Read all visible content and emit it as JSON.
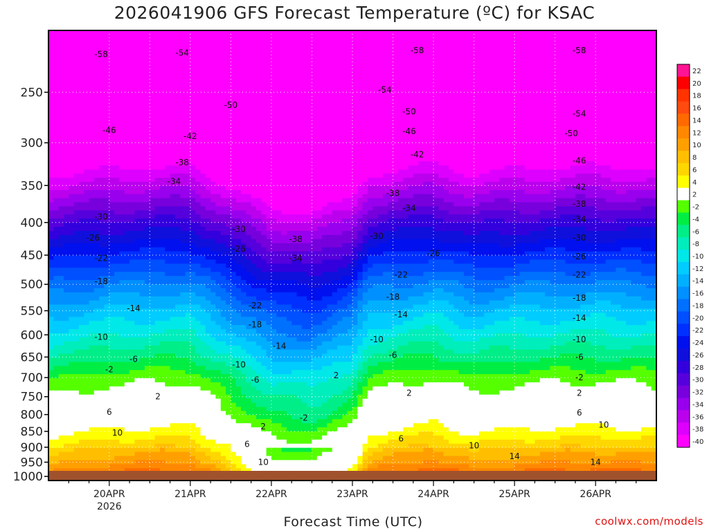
{
  "chart_data": {
    "type": "contour",
    "title": "2026041906 GFS Forecast Temperature (ºC) for KSAC",
    "xlabel": "Forecast Time (UTC)",
    "ylabel": "",
    "credit": "coolwx.com/models",
    "x_ticks": [
      {
        "label": "20APR",
        "sub": "2026",
        "day": 1
      },
      {
        "label": "21APR",
        "sub": "",
        "day": 2
      },
      {
        "label": "22APR",
        "sub": "",
        "day": 3
      },
      {
        "label": "23APR",
        "sub": "",
        "day": 4
      },
      {
        "label": "24APR",
        "sub": "",
        "day": 5
      },
      {
        "label": "25APR",
        "sub": "",
        "day": 6
      },
      {
        "label": "26APR",
        "sub": "",
        "day": 7
      }
    ],
    "xlim_days": [
      0.25,
      7.75
    ],
    "y_ticks": [
      250,
      300,
      350,
      400,
      450,
      500,
      550,
      600,
      650,
      700,
      750,
      800,
      850,
      900,
      950,
      1000
    ],
    "ylim_hpa": [
      1015,
      200
    ],
    "yscale": "log",
    "grid": true,
    "colorbar": {
      "labels": [
        "22",
        "20",
        "18",
        "16",
        "14",
        "12",
        "10",
        "8",
        "6",
        "4",
        "2",
        "-2",
        "-4",
        "-6",
        "-8",
        "-10",
        "-12",
        "-14",
        "-16",
        "-18",
        "-20",
        "-22",
        "-24",
        "-26",
        "-28",
        "-30",
        "-32",
        "-34",
        "-36",
        "-38",
        "-40"
      ],
      "colors": [
        "#ff1493",
        "#ff0000",
        "#ff3300",
        "#ff4a10",
        "#ff6a00",
        "#ff8800",
        "#ffa000",
        "#ffbf00",
        "#ffd700",
        "#ffff00",
        "#ffffff",
        "#55ff00",
        "#00ee44",
        "#00ee88",
        "#00eebb",
        "#00e8e8",
        "#00ccff",
        "#00b0ff",
        "#0090ff",
        "#0070ff",
        "#0050ff",
        "#0030ff",
        "#0010ee",
        "#1010dd",
        "#3300dd",
        "#5500dd",
        "#7700dd",
        "#9900ee",
        "#bb00ee",
        "#dd00ff",
        "#ff00ff"
      ]
    },
    "levels_profile": [
      {
        "p": 1000,
        "t": 13.0
      },
      {
        "p": 950,
        "t": 9.0
      },
      {
        "p": 900,
        "t": 6.0
      },
      {
        "p": 850,
        "t": 3.0
      },
      {
        "p": 800,
        "t": 0.0
      },
      {
        "p": 750,
        "t": -2.0
      },
      {
        "p": 700,
        "t": -4.5
      },
      {
        "p": 650,
        "t": -8.0
      },
      {
        "p": 600,
        "t": -11.5
      },
      {
        "p": 550,
        "t": -15.0
      },
      {
        "p": 500,
        "t": -19.5
      },
      {
        "p": 450,
        "t": -25.0
      },
      {
        "p": 400,
        "t": -31.0
      },
      {
        "p": 350,
        "t": -38.5
      },
      {
        "p": 300,
        "t": -46.0
      },
      {
        "p": 250,
        "t": -53.0
      },
      {
        "p": 200,
        "t": -58.0
      }
    ],
    "time_anomaly": [
      {
        "day": 0.25,
        "dt": 0.0
      },
      {
        "day": 1.0,
        "dt": 1.5
      },
      {
        "day": 2.0,
        "dt": 2.0
      },
      {
        "day": 2.5,
        "dt": -2.0
      },
      {
        "day": 3.0,
        "dt": -6.0
      },
      {
        "day": 3.5,
        "dt": -7.0
      },
      {
        "day": 4.0,
        "dt": -4.0
      },
      {
        "day": 4.2,
        "dt": 0.5
      },
      {
        "day": 5.0,
        "dt": 2.5
      },
      {
        "day": 5.5,
        "dt": 0.5
      },
      {
        "day": 6.0,
        "dt": 1.5
      },
      {
        "day": 7.0,
        "dt": 2.0
      },
      {
        "day": 7.75,
        "dt": 1.5
      }
    ],
    "contour_labels": [
      {
        "text": "-58",
        "day": 0.9,
        "p": 218
      },
      {
        "text": "-54",
        "day": 1.9,
        "p": 217
      },
      {
        "text": "-58",
        "day": 4.8,
        "p": 215
      },
      {
        "text": "-58",
        "day": 6.8,
        "p": 215
      },
      {
        "text": "-54",
        "day": 4.4,
        "p": 248
      },
      {
        "text": "-50",
        "day": 2.5,
        "p": 262
      },
      {
        "text": "-50",
        "day": 4.7,
        "p": 268
      },
      {
        "text": "-54",
        "day": 6.8,
        "p": 270
      },
      {
        "text": "-46",
        "day": 1.0,
        "p": 287
      },
      {
        "text": "-42",
        "day": 2.0,
        "p": 293
      },
      {
        "text": "-46",
        "day": 4.7,
        "p": 288
      },
      {
        "text": "-50",
        "day": 6.7,
        "p": 290
      },
      {
        "text": "-38",
        "day": 1.9,
        "p": 322
      },
      {
        "text": "-42",
        "day": 4.8,
        "p": 313
      },
      {
        "text": "-46",
        "day": 6.8,
        "p": 320
      },
      {
        "text": "-34",
        "day": 1.8,
        "p": 345
      },
      {
        "text": "-42",
        "day": 6.8,
        "p": 352
      },
      {
        "text": "-38",
        "day": 4.5,
        "p": 360
      },
      {
        "text": "-38",
        "day": 6.8,
        "p": 374
      },
      {
        "text": "-34",
        "day": 4.7,
        "p": 380
      },
      {
        "text": "-30",
        "day": 0.9,
        "p": 392
      },
      {
        "text": "-34",
        "day": 6.8,
        "p": 395
      },
      {
        "text": "-30",
        "day": 2.6,
        "p": 410
      },
      {
        "text": "-38",
        "day": 3.3,
        "p": 425
      },
      {
        "text": "-30",
        "day": 4.3,
        "p": 420
      },
      {
        "text": "-30",
        "day": 6.8,
        "p": 423
      },
      {
        "text": "-26",
        "day": 0.8,
        "p": 423
      },
      {
        "text": "-26",
        "day": 2.6,
        "p": 440
      },
      {
        "text": "-34",
        "day": 3.3,
        "p": 455
      },
      {
        "text": "-26",
        "day": 5.0,
        "p": 447
      },
      {
        "text": "-26",
        "day": 6.8,
        "p": 452
      },
      {
        "text": "-22",
        "day": 0.9,
        "p": 455
      },
      {
        "text": "-22",
        "day": 4.6,
        "p": 483
      },
      {
        "text": "-22",
        "day": 6.8,
        "p": 483
      },
      {
        "text": "-18",
        "day": 0.9,
        "p": 495
      },
      {
        "text": "-18",
        "day": 4.5,
        "p": 523
      },
      {
        "text": "-18",
        "day": 6.8,
        "p": 525
      },
      {
        "text": "-22",
        "day": 2.8,
        "p": 540
      },
      {
        "text": "-14",
        "day": 1.3,
        "p": 545
      },
      {
        "text": "-14",
        "day": 4.6,
        "p": 558
      },
      {
        "text": "-14",
        "day": 6.8,
        "p": 565
      },
      {
        "text": "-18",
        "day": 2.8,
        "p": 578
      },
      {
        "text": "-10",
        "day": 0.9,
        "p": 605
      },
      {
        "text": "-14",
        "day": 3.1,
        "p": 625
      },
      {
        "text": "-10",
        "day": 4.3,
        "p": 610
      },
      {
        "text": "-10",
        "day": 6.8,
        "p": 610
      },
      {
        "text": "-6",
        "day": 1.3,
        "p": 655
      },
      {
        "text": "-6",
        "day": 4.5,
        "p": 645
      },
      {
        "text": "-6",
        "day": 6.8,
        "p": 650
      },
      {
        "text": "-10",
        "day": 2.6,
        "p": 668
      },
      {
        "text": "-2",
        "day": 1.0,
        "p": 680
      },
      {
        "text": "-6",
        "day": 2.8,
        "p": 706
      },
      {
        "text": "2",
        "day": 3.8,
        "p": 695
      },
      {
        "text": "-2",
        "day": 6.8,
        "p": 700
      },
      {
        "text": "2",
        "day": 1.6,
        "p": 750
      },
      {
        "text": "2",
        "day": 4.7,
        "p": 740
      },
      {
        "text": "2",
        "day": 6.8,
        "p": 740
      },
      {
        "text": "-2",
        "day": 3.4,
        "p": 810
      },
      {
        "text": "6",
        "day": 1.0,
        "p": 793
      },
      {
        "text": "6",
        "day": 6.8,
        "p": 795
      },
      {
        "text": "2",
        "day": 2.9,
        "p": 835
      },
      {
        "text": "10",
        "day": 1.1,
        "p": 855
      },
      {
        "text": "10",
        "day": 7.1,
        "p": 830
      },
      {
        "text": "6",
        "day": 4.6,
        "p": 873
      },
      {
        "text": "6",
        "day": 2.7,
        "p": 890
      },
      {
        "text": "10",
        "day": 5.5,
        "p": 895
      },
      {
        "text": "14",
        "day": 6.0,
        "p": 930
      },
      {
        "text": "10",
        "day": 2.9,
        "p": 950
      },
      {
        "text": "14",
        "day": 7.0,
        "p": 950
      }
    ]
  }
}
